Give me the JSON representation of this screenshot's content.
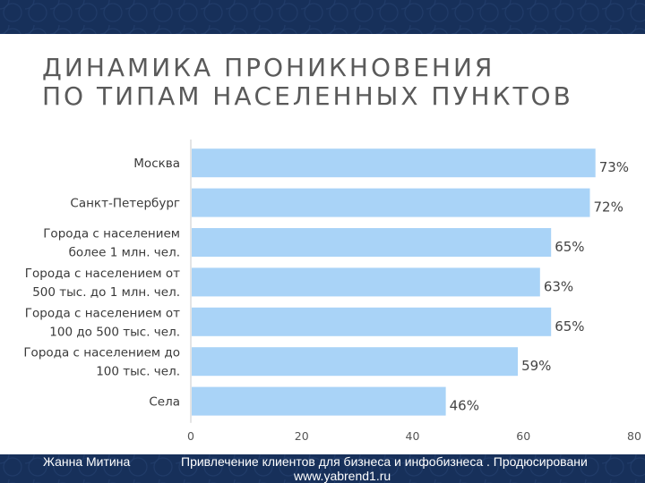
{
  "title_lines": [
    "ДИНАМИКА ПРОНИКНОВЕНИЯ",
    "ПО ТИПАМ НАСЕЛЕННЫХ ПУНКТОВ"
  ],
  "footer": {
    "author": "Жанна Митина",
    "course": "Привлечение клиентов для бизнеса и инфобизнеса . Продюсировани",
    "url": "www.yabrend1.ru"
  },
  "chart_data": {
    "type": "bar",
    "orientation": "horizontal",
    "categories": [
      [
        "Москва"
      ],
      [
        "Санкт-Петербург"
      ],
      [
        "Города с населением",
        "более 1 млн. чел."
      ],
      [
        "Города с населением от",
        "500 тыс. до 1 млн. чел."
      ],
      [
        "Города с населением от",
        "100 до 500 тыс. чел."
      ],
      [
        "Города с населением до",
        "100 тыс. чел."
      ],
      [
        "Села"
      ]
    ],
    "values": [
      73,
      72,
      65,
      63,
      65,
      59,
      46
    ],
    "data_labels": [
      "73%",
      "72%",
      "65%",
      "63%",
      "65%",
      "59%",
      "46%"
    ],
    "x_ticks": [
      "0",
      "20",
      "40",
      "60",
      "80"
    ],
    "xlim": [
      0,
      80
    ],
    "grid": false,
    "bar_color": "#a9d3f7"
  }
}
